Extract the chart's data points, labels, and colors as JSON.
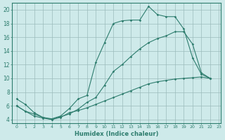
{
  "line1_x": [
    0,
    1,
    2,
    3,
    4,
    5,
    6,
    7,
    8,
    9,
    10,
    11,
    12,
    13,
    14,
    15,
    16,
    17,
    18,
    19,
    20,
    21,
    22
  ],
  "line1_y": [
    7.0,
    6.2,
    5.0,
    4.3,
    4.1,
    4.5,
    5.6,
    7.0,
    7.5,
    12.3,
    15.2,
    18.0,
    18.4,
    18.5,
    18.5,
    20.5,
    19.3,
    19.0,
    19.0,
    17.2,
    13.0,
    10.6,
    10.0
  ],
  "line2_x": [
    0,
    1,
    2,
    3,
    4,
    5,
    6,
    7,
    8,
    9,
    10,
    11,
    12,
    13,
    14,
    15,
    16,
    17,
    18,
    19,
    20,
    21,
    22
  ],
  "line2_y": [
    6.0,
    5.2,
    4.8,
    4.3,
    4.0,
    4.4,
    4.8,
    5.5,
    6.5,
    7.2,
    9.0,
    11.0,
    12.0,
    13.2,
    14.3,
    15.2,
    15.8,
    16.2,
    16.8,
    16.8,
    15.0,
    10.8,
    10.0
  ],
  "line3_x": [
    0,
    1,
    2,
    3,
    4,
    5,
    6,
    7,
    8,
    9,
    10,
    11,
    12,
    13,
    14,
    15,
    16,
    17,
    18,
    19,
    20,
    21,
    22
  ],
  "line3_y": [
    6.0,
    5.2,
    4.5,
    4.2,
    4.0,
    4.3,
    5.0,
    5.3,
    5.7,
    6.2,
    6.7,
    7.2,
    7.7,
    8.2,
    8.7,
    9.2,
    9.5,
    9.7,
    9.9,
    10.0,
    10.1,
    10.2,
    10.0
  ],
  "color": "#2e7d6e",
  "bg_color": "#ceeaea",
  "grid_color": "#9bbcbc",
  "xlabel": "Humidex (Indice chaleur)",
  "xlim": [
    -0.5,
    23.2
  ],
  "ylim": [
    3.5,
    21
  ],
  "yticks": [
    4,
    6,
    8,
    10,
    12,
    14,
    16,
    18,
    20
  ],
  "xticks": [
    0,
    1,
    2,
    3,
    4,
    5,
    6,
    7,
    8,
    9,
    10,
    11,
    12,
    13,
    14,
    15,
    16,
    17,
    18,
    19,
    20,
    21,
    22,
    23
  ],
  "xtick_labels": [
    "0",
    "1",
    "2",
    "3",
    "4",
    "5",
    "6",
    "7",
    "8",
    "9",
    "10",
    "11",
    "12",
    "13",
    "14",
    "15",
    "16",
    "17",
    "18",
    "19",
    "20",
    "21",
    "22",
    "23"
  ]
}
